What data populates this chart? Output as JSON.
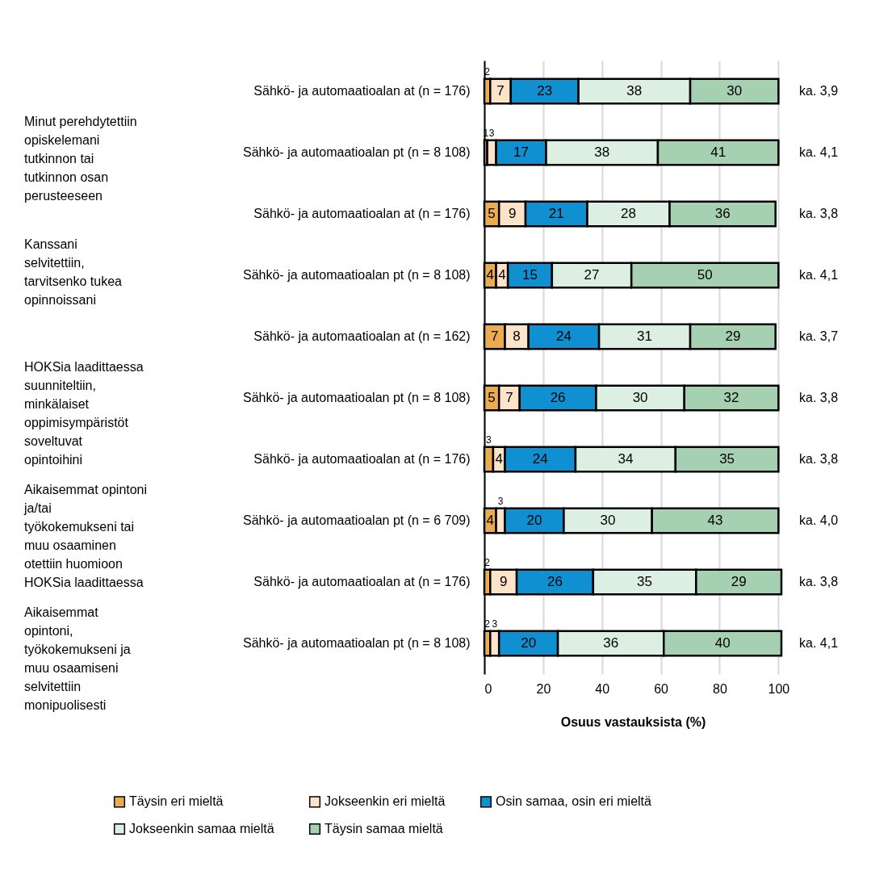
{
  "chart_data": {
    "type": "bar",
    "orientation": "horizontal",
    "stacked": true,
    "data_labels": true,
    "categories": [
      "Sähkö- ja automaatioalan at (n = 176)",
      "Sähkö- ja automaatioalan pt (n = 8 108)",
      "Sähkö- ja automaatioalan at (n = 176)",
      "Sähkö- ja automaatioalan pt (n = 8 108)",
      "Sähkö- ja automaatioalan at (n = 162)",
      "Sähkö- ja automaatioalan pt  (n = 8 108)",
      "Sähkö- ja automaatioalan at (n = 176)",
      "Sähkö- ja automaatioalan pt (n = 6 709)",
      "Sähkö- ja automaatioalan at (n = 176)",
      "Sähkö- ja automaatioalan pt (n = 8 108)"
    ],
    "series": [
      {
        "name": "Täysin eri mieltä",
        "color": "#ebab4f",
        "values": [
          2,
          1,
          5,
          4,
          7,
          5,
          3,
          4,
          2,
          2
        ]
      },
      {
        "name": "Jokseenkin eri mieltä",
        "color": "#fde3c8",
        "values": [
          7,
          3,
          9,
          4,
          8,
          7,
          4,
          3,
          9,
          3
        ]
      },
      {
        "name": "Osin samaa, osin eri mieltä",
        "color": "#1090d0",
        "values": [
          23,
          17,
          21,
          15,
          24,
          26,
          24,
          20,
          26,
          20
        ]
      },
      {
        "name": "Jokseenkin samaa mieltä",
        "color": "#dcefe2",
        "values": [
          38,
          38,
          28,
          27,
          31,
          30,
          34,
          30,
          35,
          36
        ]
      },
      {
        "name": "Täysin samaa mieltä",
        "color": "#a6d0b2",
        "values": [
          30,
          41,
          36,
          50,
          29,
          32,
          35,
          43,
          29,
          40
        ]
      }
    ],
    "xlabel": "Osuus vastauksista (%)",
    "xlim": [
      0,
      101
    ],
    "xticks": [
      0,
      20,
      40,
      60,
      80,
      100
    ],
    "grid": "x",
    "legend": "bottom",
    "annotations": [
      "Minut perehdytettiin opiskelemani tutkinnon tai tutkinnon osan perusteeseen",
      "Kanssani selvitettiin, tarvitsenko tukea opinnoissani",
      "HOKSia laadittaessa suunniteltiin, minkälaiset oppimisympäristöt soveltuvat opintoihini",
      "Aikaisemmat opintoni ja/tai työkokemukseni tai muu osaaminen otettiin huomioon HOKSia laadittaessa",
      "Aikaisemmat opintoni, työkokemukseni ja muu osaamiseni selvitettiin monipuolisesti",
      "ka. 3,9",
      "ka. 4,1",
      "ka. 3,8",
      "ka. 4,1",
      "ka. 3,7",
      "ka. 3,8",
      "ka. 3,8",
      "ka. 4,0",
      "ka. 3,8",
      "ka. 4,1"
    ]
  }
}
